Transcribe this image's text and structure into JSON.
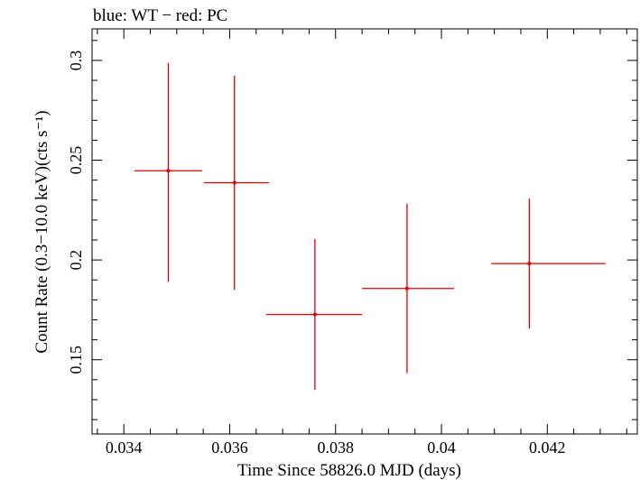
{
  "chart_data": {
    "type": "scatter",
    "title": "blue: WT − red: PC",
    "xlabel": "Time Since 58826.0 MJD (days)",
    "ylabel": "Count Rate (0.3−10.0 keV)(cts s⁻¹)",
    "xlim": [
      0.0334,
      0.0437
    ],
    "ylim": [
      0.1128,
      0.3158
    ],
    "x_ticks": [
      {
        "value": 0.034,
        "label": "0.034"
      },
      {
        "value": 0.036,
        "label": "0.036"
      },
      {
        "value": 0.038,
        "label": "0.038"
      },
      {
        "value": 0.04,
        "label": "0.04"
      },
      {
        "value": 0.042,
        "label": "0.042"
      }
    ],
    "y_ticks": [
      {
        "value": 0.3,
        "label": "0.3"
      },
      {
        "value": 0.25,
        "label": "0.25"
      },
      {
        "value": 0.2,
        "label": "0.2"
      },
      {
        "value": 0.15,
        "label": "0.15"
      }
    ],
    "grid": false,
    "series": [
      {
        "color": "#e00000",
        "points": [
          {
            "x": 0.03484,
            "xerr_lo": 0.00064,
            "xerr_hi": 0.00064,
            "y": 0.2447,
            "yerr_lo": 0.0557,
            "yerr_hi": 0.0541
          },
          {
            "x": 0.03609,
            "xerr_lo": 0.00058,
            "xerr_hi": 0.00065,
            "y": 0.2387,
            "yerr_lo": 0.0537,
            "yerr_hi": 0.0537
          },
          {
            "x": 0.03761,
            "xerr_lo": 0.00092,
            "xerr_hi": 0.00089,
            "y": 0.1727,
            "yerr_lo": 0.0378,
            "yerr_hi": 0.0378
          },
          {
            "x": 0.03935,
            "xerr_lo": 0.00085,
            "xerr_hi": 0.00089,
            "y": 0.1857,
            "yerr_lo": 0.0424,
            "yerr_hi": 0.0424
          },
          {
            "x": 0.04166,
            "xerr_lo": 0.00072,
            "xerr_hi": 0.00144,
            "y": 0.1982,
            "yerr_lo": 0.0327,
            "yerr_hi": 0.0327
          }
        ]
      }
    ]
  }
}
